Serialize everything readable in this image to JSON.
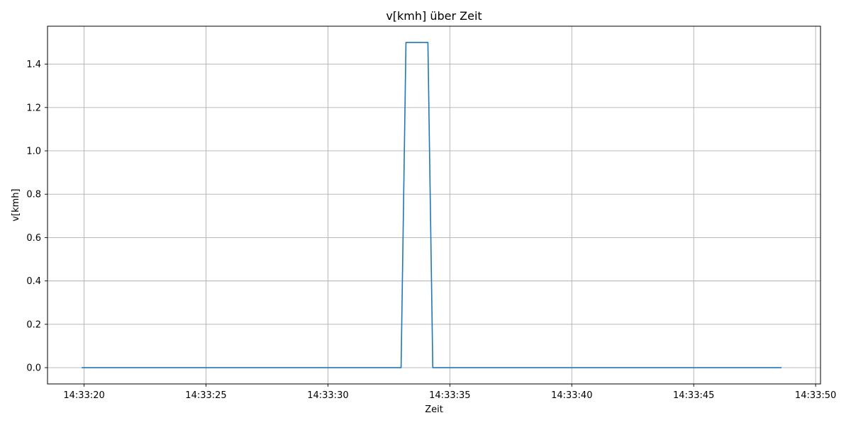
{
  "chart_data": {
    "type": "line",
    "title": "v[kmh] über Zeit",
    "xlabel": "Zeit",
    "ylabel": "v[kmh]",
    "x_unit": "time of day",
    "xlim": [
      "14:33:18.5",
      "14:33:50.2"
    ],
    "ylim": [
      -0.075,
      1.575
    ],
    "x_ticks": [
      "14:33:20",
      "14:33:25",
      "14:33:30",
      "14:33:35",
      "14:33:40",
      "14:33:45",
      "14:33:50"
    ],
    "y_ticks": [
      0.0,
      0.2,
      0.4,
      0.6,
      0.8,
      1.0,
      1.2,
      1.4
    ],
    "y_tick_labels": [
      "0.0",
      "0.2",
      "0.4",
      "0.6",
      "0.8",
      "1.0",
      "1.2",
      "1.4"
    ],
    "grid": true,
    "series": [
      {
        "color": "#1f77b4",
        "x": [
          "14:33:19.9",
          "14:33:33.0",
          "14:33:33.2",
          "14:33:34.1",
          "14:33:34.3",
          "14:33:48.6"
        ],
        "y": [
          0.0,
          0.0,
          1.5,
          1.5,
          0.0,
          0.0
        ]
      }
    ]
  }
}
